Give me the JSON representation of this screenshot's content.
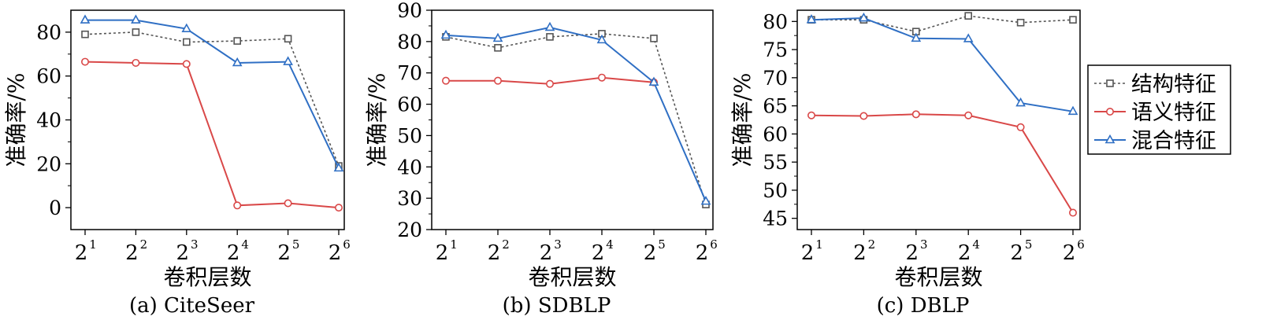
{
  "colors": {
    "structural": "#555555",
    "semantic": "#d94848",
    "hybrid": "#2f6fc4",
    "axis": "#000000"
  },
  "legend": {
    "placement": "right",
    "entries": [
      "结构特征",
      "语义特征",
      "混合特征"
    ]
  },
  "chart_data": [
    {
      "type": "line",
      "caption": "(a) CiteSeer",
      "xlabel": "卷积层数",
      "ylabel": "准确率/%",
      "categories": [
        "2^1",
        "2^2",
        "2^3",
        "2^4",
        "2^5",
        "2^6"
      ],
      "tick_bases": [
        "2",
        "2",
        "2",
        "2",
        "2",
        "2"
      ],
      "tick_exps": [
        "1",
        "2",
        "3",
        "4",
        "5",
        "6"
      ],
      "ylim": [
        -10,
        90
      ],
      "yticks": [
        0,
        20,
        40,
        60,
        80
      ],
      "grid": false,
      "series": [
        {
          "name": "结构特征",
          "values": [
            79,
            80,
            75.5,
            76,
            77,
            19
          ]
        },
        {
          "name": "语义特征",
          "values": [
            66.5,
            66,
            65.5,
            1,
            2,
            0
          ]
        },
        {
          "name": "混合特征",
          "values": [
            85.5,
            85.5,
            81.5,
            66,
            66.5,
            18
          ]
        }
      ]
    },
    {
      "type": "line",
      "caption": "(b) SDBLP",
      "xlabel": "卷积层数",
      "ylabel": "准确率/%",
      "categories": [
        "2^1",
        "2^2",
        "2^3",
        "2^4",
        "2^5",
        "2^6"
      ],
      "tick_bases": [
        "2",
        "2",
        "2",
        "2",
        "2",
        "2"
      ],
      "tick_exps": [
        "1",
        "2",
        "3",
        "4",
        "5",
        "6"
      ],
      "ylim": [
        20,
        90
      ],
      "yticks": [
        20,
        30,
        40,
        50,
        60,
        70,
        80,
        90
      ],
      "grid": false,
      "series": [
        {
          "name": "结构特征",
          "values": [
            81.5,
            78,
            81.5,
            82.5,
            81,
            28
          ]
        },
        {
          "name": "语义特征",
          "values": [
            67.5,
            67.5,
            66.5,
            68.5,
            67,
            null
          ]
        },
        {
          "name": "混合特征",
          "values": [
            82,
            81,
            84.5,
            80.5,
            67,
            29
          ]
        }
      ]
    },
    {
      "type": "line",
      "caption": "(c) DBLP",
      "xlabel": "卷积层数",
      "ylabel": "准确率/%",
      "categories": [
        "2^1",
        "2^2",
        "2^3",
        "2^4",
        "2^5",
        "2^6"
      ],
      "tick_bases": [
        "2",
        "2",
        "2",
        "2",
        "2",
        "2"
      ],
      "tick_exps": [
        "1",
        "2",
        "3",
        "4",
        "5",
        "6"
      ],
      "ylim": [
        43,
        82
      ],
      "yticks": [
        45,
        50,
        55,
        60,
        65,
        70,
        75,
        80
      ],
      "grid": false,
      "series": [
        {
          "name": "结构特征",
          "values": [
            80.3,
            80.3,
            78.2,
            81,
            79.8,
            80.3
          ]
        },
        {
          "name": "语义特征",
          "values": [
            63.3,
            63.2,
            63.5,
            63.3,
            61.2,
            46
          ]
        },
        {
          "name": "混合特征",
          "values": [
            80.3,
            80.6,
            77,
            76.9,
            65.5,
            64
          ]
        }
      ]
    }
  ]
}
